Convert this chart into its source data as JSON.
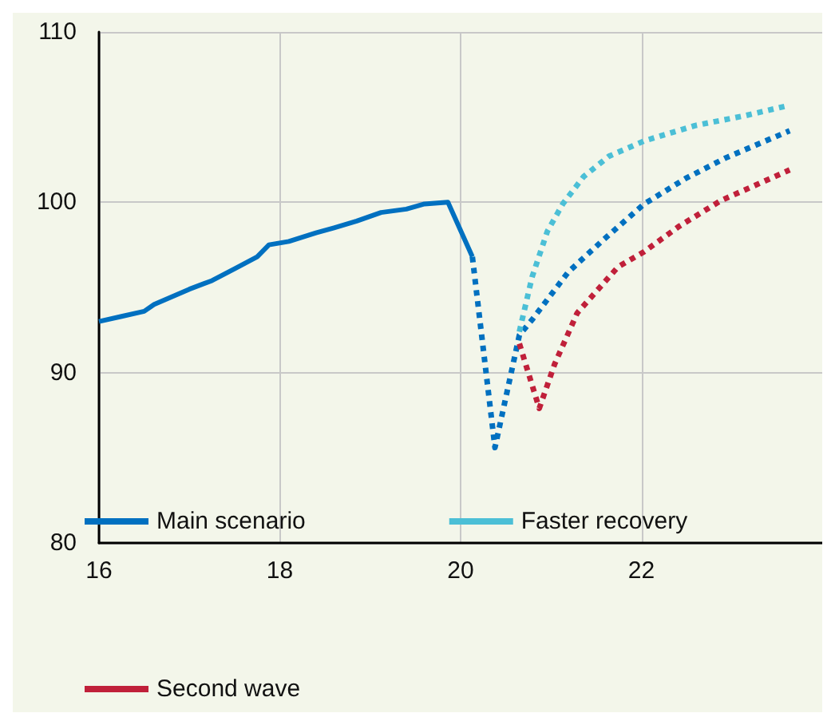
{
  "chart_data": {
    "type": "line",
    "xlim": [
      16,
      24
    ],
    "xticks": [
      16,
      18,
      20,
      22
    ],
    "ylim": [
      80,
      110
    ],
    "yticks": [
      80,
      90,
      100,
      110
    ],
    "grid": true,
    "legend": "bottom",
    "marker": "none",
    "series": [
      {
        "color": "#0070c0",
        "line_style": "solid",
        "x": [
          16,
          16.25,
          16.5,
          16.61,
          17,
          17.25,
          17.5,
          17.75,
          17.88,
          18.1,
          18.4,
          18.6,
          18.85,
          19.12,
          19.4,
          19.6,
          19.86,
          20.13
        ],
        "values": [
          93.0,
          93.3,
          93.6,
          94.0,
          94.9,
          95.4,
          96.1,
          96.8,
          97.5,
          97.7,
          98.2,
          98.5,
          98.9,
          99.4,
          99.6,
          99.9,
          100.0,
          96.8
        ]
      },
      {
        "name": "Main scenario",
        "color": "#0070c0",
        "line_style": "dotted",
        "x": [
          20.13,
          20.38,
          20.65,
          20.79,
          21.19,
          21.58,
          22.03,
          22.49,
          22.93,
          23.64
        ],
        "values": [
          96.8,
          85.6,
          92.2,
          93.1,
          95.9,
          97.8,
          99.9,
          101.4,
          102.6,
          104.2
        ]
      },
      {
        "name": "Faster recovery",
        "color": "#4bbfd6",
        "line_style": "dotted",
        "x": [
          20.65,
          20.79,
          20.96,
          21.13,
          21.36,
          21.64,
          22.03,
          22.59,
          23.16,
          23.64
        ],
        "values": [
          92.4,
          95.6,
          98.3,
          99.9,
          101.5,
          102.7,
          103.6,
          104.5,
          105.1,
          105.7
        ]
      },
      {
        "name": "Second wave",
        "color": "#c0203a",
        "line_style": "dotted",
        "x": [
          20.65,
          20.87,
          21.04,
          21.29,
          21.74,
          22.03,
          22.42,
          22.88,
          23.64
        ],
        "values": [
          91.7,
          87.9,
          90.5,
          93.5,
          96.2,
          97.1,
          98.6,
          100.1,
          101.9
        ]
      }
    ]
  }
}
